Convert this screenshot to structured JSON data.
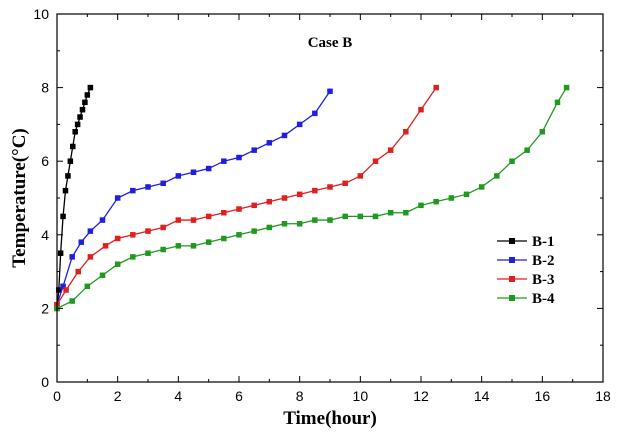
{
  "chart_data": {
    "type": "line",
    "title": "Case B",
    "xlabel": "Time(hour)",
    "ylabel": "Temperature(°C)",
    "xlim": [
      0,
      18
    ],
    "ylim": [
      0,
      10
    ],
    "xticks": [
      0,
      2,
      4,
      6,
      8,
      10,
      12,
      14,
      16,
      18
    ],
    "yticks": [
      0,
      2,
      4,
      6,
      8,
      10
    ],
    "grid": false,
    "legend_position": "right",
    "marker": "square",
    "series": [
      {
        "name": "B-1",
        "color": "#000000",
        "x": [
          0.0,
          0.06,
          0.12,
          0.2,
          0.28,
          0.36,
          0.44,
          0.52,
          0.6,
          0.68,
          0.76,
          0.84,
          0.92,
          1.0,
          1.1
        ],
        "y": [
          2.0,
          2.5,
          3.5,
          4.5,
          5.2,
          5.6,
          6.0,
          6.4,
          6.8,
          7.0,
          7.2,
          7.4,
          7.6,
          7.8,
          8.0
        ]
      },
      {
        "name": "B-2",
        "color": "#1f1fe0",
        "x": [
          0.0,
          0.2,
          0.5,
          0.8,
          1.1,
          1.5,
          2.0,
          2.5,
          3.0,
          3.5,
          4.0,
          4.5,
          5.0,
          5.5,
          6.0,
          6.5,
          7.0,
          7.5,
          8.0,
          8.5,
          9.0
        ],
        "y": [
          2.1,
          2.6,
          3.4,
          3.8,
          4.1,
          4.4,
          5.0,
          5.2,
          5.3,
          5.4,
          5.6,
          5.7,
          5.8,
          6.0,
          6.1,
          6.3,
          6.5,
          6.7,
          7.0,
          7.3,
          7.9
        ]
      },
      {
        "name": "B-3",
        "color": "#e01f1f",
        "x": [
          0.0,
          0.3,
          0.7,
          1.1,
          1.6,
          2.0,
          2.5,
          3.0,
          3.5,
          4.0,
          4.5,
          5.0,
          5.5,
          6.0,
          6.5,
          7.0,
          7.5,
          8.0,
          8.5,
          9.0,
          9.5,
          10.0,
          10.5,
          11.0,
          11.5,
          12.0,
          12.5
        ],
        "y": [
          2.1,
          2.5,
          3.0,
          3.4,
          3.7,
          3.9,
          4.0,
          4.1,
          4.2,
          4.4,
          4.4,
          4.5,
          4.6,
          4.7,
          4.8,
          4.9,
          5.0,
          5.1,
          5.2,
          5.3,
          5.4,
          5.6,
          6.0,
          6.3,
          6.8,
          7.4,
          8.0
        ]
      },
      {
        "name": "B-4",
        "color": "#1f9a1f",
        "x": [
          0.0,
          0.5,
          1.0,
          1.5,
          2.0,
          2.5,
          3.0,
          3.5,
          4.0,
          4.5,
          5.0,
          5.5,
          6.0,
          6.5,
          7.0,
          7.5,
          8.0,
          8.5,
          9.0,
          9.5,
          10.0,
          10.5,
          11.0,
          11.5,
          12.0,
          12.5,
          13.0,
          13.5,
          14.0,
          14.5,
          15.0,
          15.5,
          16.0,
          16.5,
          16.8
        ],
        "y": [
          2.0,
          2.2,
          2.6,
          2.9,
          3.2,
          3.4,
          3.5,
          3.6,
          3.7,
          3.7,
          3.8,
          3.9,
          4.0,
          4.1,
          4.2,
          4.3,
          4.3,
          4.4,
          4.4,
          4.5,
          4.5,
          4.5,
          4.6,
          4.6,
          4.8,
          4.9,
          5.0,
          5.1,
          5.3,
          5.6,
          6.0,
          6.3,
          6.8,
          7.6,
          8.0
        ]
      }
    ]
  }
}
